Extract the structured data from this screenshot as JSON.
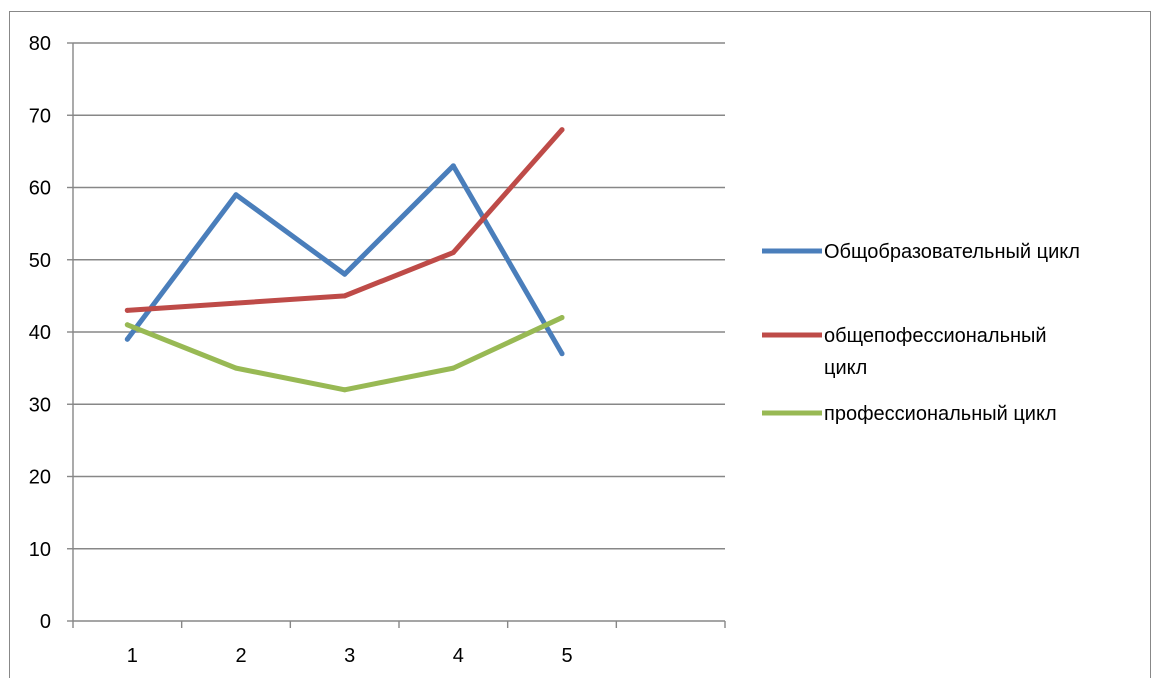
{
  "chart_data": {
    "type": "line",
    "title": "",
    "xlabel": "",
    "ylabel": "",
    "x": [
      "1",
      "2",
      "3",
      "4",
      "5"
    ],
    "x_axis_slots": 6,
    "y_ticks": [
      "0",
      "10",
      "20",
      "30",
      "40",
      "50",
      "60",
      "70",
      "80"
    ],
    "ylim": [
      0,
      80
    ],
    "grid": "horizontal",
    "legend_position": "right",
    "series": [
      {
        "name": "Общобразовательный цикл",
        "name_lines": [
          "Общобразовательный цикл"
        ],
        "color": "#4a7ebb",
        "values": [
          39,
          59,
          48,
          63,
          37
        ]
      },
      {
        "name": "общепофессиональный цикл",
        "name_lines": [
          "общепофессиональный",
          "цикл"
        ],
        "color": "#be4b48",
        "values": [
          43,
          44,
          45,
          51,
          68
        ]
      },
      {
        "name": "профессиональный цикл",
        "name_lines": [
          "профессиональный цикл"
        ],
        "color": "#98b954",
        "values": [
          41,
          35,
          32,
          35,
          42
        ]
      }
    ]
  }
}
